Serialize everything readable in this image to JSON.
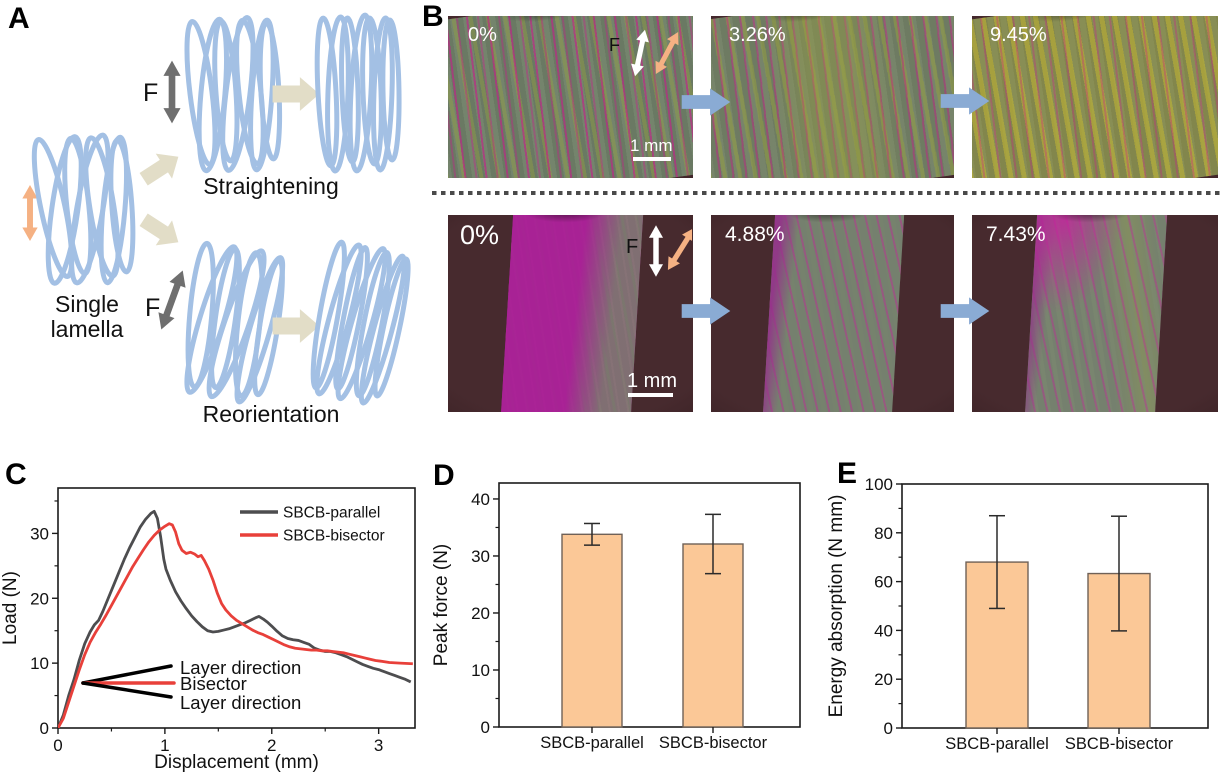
{
  "panel_a": {
    "label": "A",
    "single_lamella_line1": "Single",
    "single_lamella_line2": "lamella",
    "force_label_top": "F",
    "force_label_bottom": "F",
    "straightening_label": "Straightening",
    "reorientation_label": "Reorientation"
  },
  "panel_b": {
    "label": "B",
    "top_row": {
      "strains": [
        "0%",
        "3.26%",
        "9.45%"
      ],
      "force_label": "F",
      "scale_label": "1 mm"
    },
    "bottom_row": {
      "strains": [
        "0%",
        "4.88%",
        "7.43%"
      ],
      "force_label": "F",
      "scale_label": "1 mm"
    }
  },
  "panel_c": {
    "label": "C"
  },
  "panel_d": {
    "label": "D"
  },
  "panel_e": {
    "label": "E"
  },
  "colors": {
    "lamella_blue": "#a3c0e4",
    "beige_arrow": "#e2ddc7",
    "gray_arrow": "#6f6f6f",
    "orange_arrow": "#f5b183",
    "blue_block_arrow": "#8aabd4",
    "bar_fill": "#fbc897",
    "bar_edge": "#6f6157",
    "parallel_curve": "#4d4d4f",
    "bisector_curve": "#e8403a"
  },
  "chart_data": [
    {
      "type": "line",
      "xlabel": "Displacement (mm)",
      "ylabel": "Load (N)",
      "xlim": [
        0,
        3.34
      ],
      "ylim": [
        0,
        37
      ],
      "xticks": [
        0,
        1,
        2,
        3
      ],
      "xticks_minor": [
        0.5,
        1.5,
        2.5
      ],
      "yticks": [
        0,
        10,
        20,
        30
      ],
      "yticks_minor": [
        5,
        15,
        25,
        35
      ],
      "legend_position": "top-right",
      "grid": false,
      "series": [
        {
          "name": "SBCB-parallel",
          "color": "#4d4d4f",
          "points": [
            [
              0,
              0
            ],
            [
              0.05,
              2
            ],
            [
              0.1,
              5
            ],
            [
              0.15,
              7.5
            ],
            [
              0.2,
              10.5
            ],
            [
              0.25,
              13
            ],
            [
              0.3,
              14.8
            ],
            [
              0.34,
              15.9
            ],
            [
              0.38,
              16.6
            ],
            [
              0.42,
              18
            ],
            [
              0.47,
              20
            ],
            [
              0.52,
              22
            ],
            [
              0.57,
              24
            ],
            [
              0.62,
              26
            ],
            [
              0.67,
              27.8
            ],
            [
              0.72,
              29.4
            ],
            [
              0.77,
              31
            ],
            [
              0.82,
              32.2
            ],
            [
              0.87,
              33.1
            ],
            [
              0.9,
              33.4
            ],
            [
              0.93,
              32.3
            ],
            [
              0.96,
              29.5
            ],
            [
              0.99,
              26
            ],
            [
              1.01,
              24.5
            ],
            [
              1.05,
              22.8
            ],
            [
              1.1,
              21
            ],
            [
              1.15,
              19.6
            ],
            [
              1.2,
              18.4
            ],
            [
              1.25,
              17.3
            ],
            [
              1.3,
              16.4
            ],
            [
              1.35,
              15.6
            ],
            [
              1.4,
              15
            ],
            [
              1.45,
              14.8
            ],
            [
              1.5,
              14.9
            ],
            [
              1.55,
              15.1
            ],
            [
              1.6,
              15.3
            ],
            [
              1.65,
              15.6
            ],
            [
              1.7,
              15.9
            ],
            [
              1.75,
              16.2
            ],
            [
              1.8,
              16.6
            ],
            [
              1.85,
              17
            ],
            [
              1.88,
              17.2
            ],
            [
              1.92,
              16.8
            ],
            [
              1.96,
              16.3
            ],
            [
              2,
              15.7
            ],
            [
              2.05,
              14.9
            ],
            [
              2.1,
              14.2
            ],
            [
              2.15,
              13.8
            ],
            [
              2.2,
              13.6
            ],
            [
              2.25,
              13.5
            ],
            [
              2.3,
              13.2
            ],
            [
              2.35,
              12.9
            ],
            [
              2.4,
              12.3
            ],
            [
              2.45,
              12
            ],
            [
              2.5,
              11.8
            ],
            [
              2.55,
              11.8
            ],
            [
              2.6,
              11.6
            ],
            [
              2.65,
              11.3
            ],
            [
              2.7,
              11
            ],
            [
              2.75,
              10.6
            ],
            [
              2.8,
              10.2
            ],
            [
              2.85,
              9.8
            ],
            [
              2.9,
              9.5
            ],
            [
              2.95,
              9.2
            ],
            [
              3,
              9
            ],
            [
              3.05,
              8.7
            ],
            [
              3.1,
              8.4
            ],
            [
              3.15,
              8.1
            ],
            [
              3.2,
              7.8
            ],
            [
              3.25,
              7.5
            ],
            [
              3.3,
              7.1
            ]
          ]
        },
        {
          "name": "SBCB-bisector",
          "color": "#e8403a",
          "points": [
            [
              0,
              0
            ],
            [
              0.05,
              1.5
            ],
            [
              0.1,
              4
            ],
            [
              0.15,
              6.5
            ],
            [
              0.2,
              9
            ],
            [
              0.25,
              11.3
            ],
            [
              0.3,
              13.2
            ],
            [
              0.35,
              14.7
            ],
            [
              0.4,
              16
            ],
            [
              0.45,
              17.4
            ],
            [
              0.5,
              18.9
            ],
            [
              0.55,
              20.4
            ],
            [
              0.6,
              21.9
            ],
            [
              0.65,
              23.4
            ],
            [
              0.7,
              24.9
            ],
            [
              0.75,
              26.2
            ],
            [
              0.8,
              27.5
            ],
            [
              0.85,
              28.7
            ],
            [
              0.9,
              29.7
            ],
            [
              0.95,
              30.5
            ],
            [
              1,
              31.1
            ],
            [
              1.04,
              31.5
            ],
            [
              1.07,
              31.3
            ],
            [
              1.1,
              30.2
            ],
            [
              1.13,
              28.4
            ],
            [
              1.16,
              27.4
            ],
            [
              1.2,
              26.9
            ],
            [
              1.24,
              27.1
            ],
            [
              1.28,
              26.8
            ],
            [
              1.31,
              26.4
            ],
            [
              1.34,
              26.6
            ],
            [
              1.37,
              25.8
            ],
            [
              1.41,
              24.5
            ],
            [
              1.45,
              22.8
            ],
            [
              1.49,
              20.8
            ],
            [
              1.53,
              19.2
            ],
            [
              1.57,
              18.2
            ],
            [
              1.62,
              17.3
            ],
            [
              1.67,
              16.6
            ],
            [
              1.72,
              16.1
            ],
            [
              1.77,
              15.6
            ],
            [
              1.82,
              15.1
            ],
            [
              1.87,
              14.7
            ],
            [
              1.92,
              14.4
            ],
            [
              1.97,
              14
            ],
            [
              2.02,
              13.6
            ],
            [
              2.07,
              13.2
            ],
            [
              2.12,
              12.8
            ],
            [
              2.17,
              12.5
            ],
            [
              2.22,
              12.3
            ],
            [
              2.27,
              12.2
            ],
            [
              2.32,
              12.1
            ],
            [
              2.37,
              12
            ],
            [
              2.42,
              12
            ],
            [
              2.47,
              11.9
            ],
            [
              2.52,
              11.9
            ],
            [
              2.57,
              11.8
            ],
            [
              2.62,
              11.7
            ],
            [
              2.67,
              11.6
            ],
            [
              2.72,
              11.4
            ],
            [
              2.77,
              11.2
            ],
            [
              2.82,
              11
            ],
            [
              2.87,
              10.8
            ],
            [
              2.92,
              10.6
            ],
            [
              2.97,
              10.4
            ],
            [
              3.02,
              10.3
            ],
            [
              3.1,
              10.1
            ],
            [
              3.2,
              10
            ],
            [
              3.32,
              9.9
            ]
          ]
        }
      ],
      "annotations": [
        {
          "text": "Layer direction",
          "color": "#000000"
        },
        {
          "text": "Bisector",
          "color": "#e8403a"
        },
        {
          "text": "Layer direction",
          "color": "#000000"
        }
      ]
    },
    {
      "type": "bar",
      "ylabel": "Peak force (N)",
      "categories": [
        "SBCB-parallel",
        "SBCB-bisector"
      ],
      "values": [
        33.8,
        32.1
      ],
      "errors": [
        1.9,
        5.2
      ],
      "ylim": [
        0,
        42.8
      ],
      "yticks": [
        0,
        10,
        20,
        30,
        40
      ],
      "yticks_minor": [
        5,
        15,
        25,
        35
      ],
      "bar_color": "#fbc897",
      "bar_edge": "#6f6157",
      "error_color": "#2b2b2b"
    },
    {
      "type": "bar",
      "ylabel": "Energy absorption (N mm)",
      "categories": [
        "SBCB-parallel",
        "SBCB-bisector"
      ],
      "values": [
        68,
        63.3
      ],
      "errors": [
        19,
        23.5
      ],
      "ylim": [
        0,
        100
      ],
      "yticks": [
        0,
        20,
        40,
        60,
        80,
        100
      ],
      "yticks_minor": [
        10,
        30,
        50,
        70,
        90
      ],
      "bar_color": "#fbc897",
      "bar_edge": "#6f6157",
      "error_color": "#2b2b2b"
    }
  ]
}
